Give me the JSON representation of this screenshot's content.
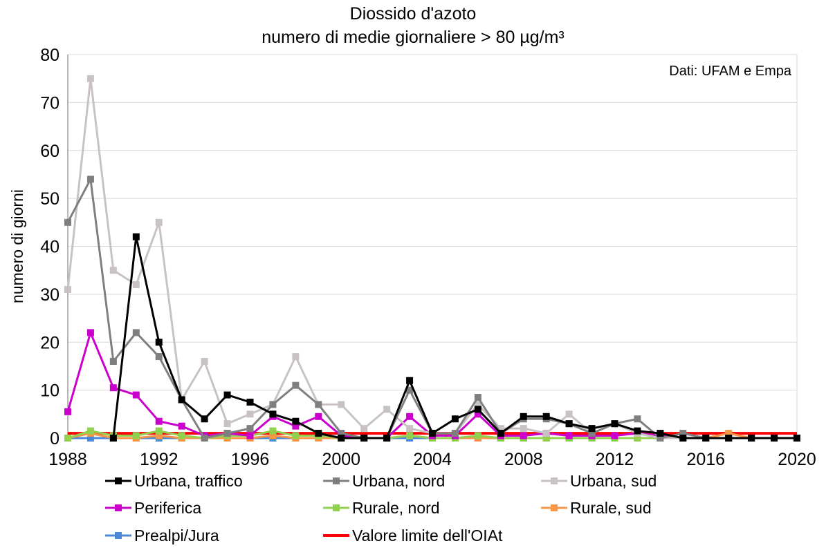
{
  "chart_data": {
    "type": "line",
    "title": "Diossido d'azoto",
    "subtitle": "numero di medie giornaliere > 80 µg/m³",
    "ylabel": "numero di giorni",
    "annotation": "Dati: UFAM e Empa",
    "xlim": [
      1988,
      2020
    ],
    "ylim": [
      0,
      80
    ],
    "x_ticks": [
      "1988",
      "1992",
      "1996",
      "2000",
      "2004",
      "2008",
      "2012",
      "2016",
      "2020"
    ],
    "y_ticks": [
      "0",
      "10",
      "20",
      "30",
      "40",
      "50",
      "60",
      "70",
      "80"
    ],
    "grid": "horizontal",
    "legend_position": "bottom",
    "x": [
      1988,
      1989,
      1990,
      1991,
      1992,
      1993,
      1994,
      1995,
      1996,
      1997,
      1998,
      1999,
      2000,
      2001,
      2002,
      2003,
      2004,
      2005,
      2006,
      2007,
      2008,
      2009,
      2010,
      2011,
      2012,
      2013,
      2014,
      2015,
      2016,
      2017,
      2018,
      2019,
      2020
    ],
    "series": [
      {
        "name": "Urbana, traffico",
        "color": "#000000",
        "values": [
          null,
          null,
          0,
          42,
          20,
          8,
          4,
          9,
          7.5,
          5,
          3.5,
          1,
          0,
          0,
          0,
          12,
          1,
          4,
          6,
          1,
          4.5,
          4.5,
          3,
          2,
          3,
          1.5,
          1,
          0,
          0,
          0,
          0,
          0,
          0
        ]
      },
      {
        "name": "Urbana, nord",
        "color": "#7f7f7f",
        "values": [
          45,
          54,
          16,
          22,
          17,
          8,
          0,
          1,
          2,
          7,
          11,
          7,
          1,
          0,
          0,
          10,
          1,
          1,
          8.5,
          1,
          4,
          4,
          3,
          1,
          3,
          4,
          0,
          1,
          0,
          0,
          0,
          0,
          0
        ]
      },
      {
        "name": "Urbana, sud",
        "color": "#c9c2c2",
        "values": [
          31,
          75,
          35,
          32,
          45,
          8,
          16,
          3,
          5,
          7,
          17,
          7,
          7,
          2,
          6,
          2,
          1,
          1,
          7,
          2,
          2,
          1,
          5,
          1,
          3,
          1,
          0,
          0,
          0,
          0,
          0,
          0,
          0
        ]
      },
      {
        "name": "Periferica",
        "color": "#cc00cc",
        "values": [
          5.5,
          22,
          10.5,
          9,
          3.5,
          2.5,
          0.5,
          1,
          0.5,
          4.5,
          2.5,
          4.5,
          0.5,
          0,
          0,
          4.5,
          0.5,
          0.5,
          5,
          0.5,
          0.5,
          1,
          0.5,
          0.5,
          0.5,
          1,
          0.5,
          0,
          0,
          0,
          0,
          0,
          0
        ]
      },
      {
        "name": "Rurale, nord",
        "color": "#92d050",
        "values": [
          0,
          1.5,
          0.5,
          0.5,
          1.5,
          0.5,
          0,
          0.5,
          0.5,
          1.5,
          0.5,
          0.5,
          0,
          0,
          0,
          0.5,
          0,
          0,
          0.5,
          0,
          0,
          0,
          0,
          0,
          0,
          0,
          0,
          0,
          0,
          0,
          0,
          0,
          0
        ]
      },
      {
        "name": "Rurale, sud",
        "color": "#f79646",
        "values": [
          0,
          1,
          0,
          0,
          0.5,
          0,
          0,
          0,
          0,
          0.5,
          0,
          0,
          0,
          0,
          0,
          0.5,
          0,
          0,
          0,
          0,
          0,
          0,
          0,
          0,
          0,
          0,
          0,
          0,
          0,
          1,
          0,
          0,
          0
        ]
      },
      {
        "name": "Prealpi/Jura",
        "color": "#4a89d8",
        "values": [
          0,
          0,
          0,
          0,
          0,
          0,
          0,
          0,
          0,
          0,
          0,
          0,
          0,
          0,
          0,
          0,
          0,
          0,
          0,
          0,
          0,
          0,
          0,
          0,
          0,
          0,
          0,
          0,
          0,
          0,
          0,
          0,
          0
        ]
      },
      {
        "name": "Valore limite dell'OIAt",
        "color": "#ff0000",
        "markers": false,
        "values": [
          1,
          1,
          1,
          1,
          1,
          1,
          1,
          1,
          1,
          1,
          1,
          1,
          1,
          1,
          1,
          1,
          1,
          1,
          1,
          1,
          1,
          1,
          1,
          1,
          1,
          1,
          1,
          1,
          1,
          1,
          1,
          1,
          1
        ]
      }
    ]
  }
}
